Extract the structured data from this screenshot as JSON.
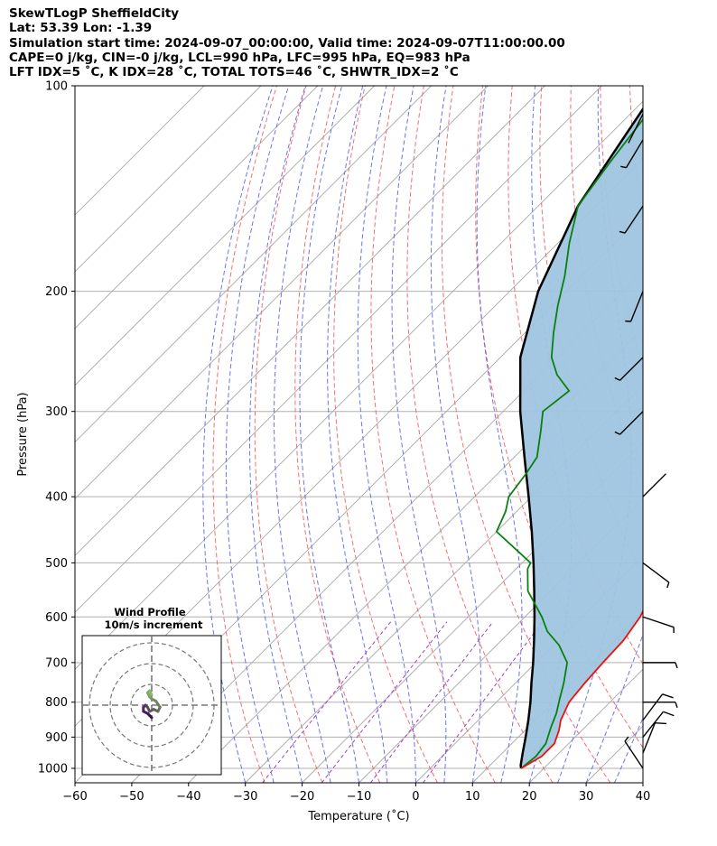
{
  "header": {
    "line1": "SkewTLogP SheffieldCity",
    "line2": "Lat: 53.39   Lon: -1.39",
    "line3": "Simulation start time: 2024-09-07_00:00:00, Valid time: 2024-09-07T11:00:00.00",
    "line4": "CAPE=0 j/kg, CIN=-0 j/kg, LCL=990 hPa, LFC=995 hPa, EQ=983 hPa",
    "line5": "LFT IDX=5 ˚C, K IDX=28 ˚C, TOTAL TOTS=46 ˚C, SHWTR_IDX=2 ˚C"
  },
  "chart_data": {
    "type": "line",
    "subtype": "skew-T log-P diagram",
    "xlabel": "Temperature (˚C)",
    "ylabel": "Pressure (hPa)",
    "xlim": [
      -60,
      40
    ],
    "ylim": [
      1050,
      100
    ],
    "y_scale": "log",
    "x_ticks": [
      "−60",
      "−50",
      "−40",
      "−30",
      "−20",
      "−10",
      "0",
      "10",
      "20",
      "30",
      "40"
    ],
    "y_ticks": [
      "100",
      "200",
      "300",
      "400",
      "500",
      "600",
      "700",
      "800",
      "900",
      "1000"
    ],
    "grid": true,
    "colors": {
      "temperature": "#e8120f",
      "dewpoint": "#0a8010",
      "parcel": "#000000",
      "cape_fill": "#9fc5df",
      "dry_adiabats": "#f06060",
      "moist_adiabats": "#5a64f0",
      "mixing_ratio": "#a040c0",
      "isotherms": "#aaaaaa"
    },
    "series": [
      {
        "name": "",
        "role": "temperature",
        "points": [
          [
            1000,
            16
          ],
          [
            960,
            17.5
          ],
          [
            920,
            17.5
          ],
          [
            880,
            16
          ],
          [
            850,
            14.5
          ],
          [
            800,
            12.8
          ],
          [
            750,
            12.2
          ],
          [
            700,
            11.8
          ],
          [
            650,
            11.5
          ],
          [
            600,
            10.3
          ],
          [
            550,
            8
          ],
          [
            500,
            5.5
          ],
          [
            450,
            2.5
          ],
          [
            400,
            -2.5
          ],
          [
            350,
            -8.5
          ],
          [
            300,
            -16.5
          ],
          [
            270,
            -21
          ],
          [
            250,
            -25
          ],
          [
            230,
            -29
          ],
          [
            210,
            -33
          ],
          [
            190,
            -37
          ],
          [
            170,
            -41.5
          ],
          [
            150,
            -48
          ],
          [
            130,
            -52
          ],
          [
            120,
            -54.5
          ],
          [
            110,
            -56.5
          ],
          [
            100,
            -59
          ]
        ]
      },
      {
        "name": "",
        "role": "dewpoint",
        "points": [
          [
            1000,
            16
          ],
          [
            960,
            16.5
          ],
          [
            920,
            16
          ],
          [
            870,
            14
          ],
          [
            830,
            12.5
          ],
          [
            790,
            10.5
          ],
          [
            750,
            8.5
          ],
          [
            700,
            5.5
          ],
          [
            660,
            1
          ],
          [
            630,
            -3.5
          ],
          [
            600,
            -7
          ],
          [
            550,
            -14
          ],
          [
            510,
            -18
          ],
          [
            500,
            -18.5
          ],
          [
            450,
            -30
          ],
          [
            420,
            -32
          ],
          [
            400,
            -34
          ],
          [
            370,
            -35
          ],
          [
            350,
            -36
          ],
          [
            320,
            -40
          ],
          [
            300,
            -43
          ],
          [
            280,
            -42
          ],
          [
            265,
            -47
          ],
          [
            250,
            -51
          ],
          [
            230,
            -55
          ],
          [
            210,
            -59
          ],
          [
            190,
            -63
          ],
          [
            170,
            -68
          ],
          [
            150,
            -73
          ],
          [
            130,
            -75
          ],
          [
            120,
            -76
          ],
          [
            110,
            -77
          ],
          [
            100,
            -79
          ]
        ]
      },
      {
        "name": "",
        "role": "parcel",
        "points": [
          [
            1000,
            16
          ],
          [
            990,
            15.4
          ],
          [
            950,
            13.6
          ],
          [
            900,
            11.3
          ],
          [
            850,
            8.8
          ],
          [
            800,
            6
          ],
          [
            750,
            2.8
          ],
          [
            700,
            -0.5
          ],
          [
            650,
            -4.2
          ],
          [
            600,
            -8.3
          ],
          [
            550,
            -12.9
          ],
          [
            500,
            -18
          ],
          [
            450,
            -23.8
          ],
          [
            400,
            -30.5
          ],
          [
            350,
            -38.2
          ],
          [
            300,
            -47
          ],
          [
            250,
            -56.5
          ],
          [
            200,
            -65
          ],
          [
            150,
            -73
          ],
          [
            100,
            -80
          ]
        ]
      }
    ],
    "wind_barbs": [
      {
        "p": 1000,
        "u": 4,
        "v": -6
      },
      {
        "p": 950,
        "u": -4,
        "v": -10
      },
      {
        "p": 900,
        "u": -8,
        "v": -10
      },
      {
        "p": 850,
        "u": -6,
        "v": -8
      },
      {
        "p": 800,
        "u": -8,
        "v": 0
      },
      {
        "p": 700,
        "u": -6,
        "v": 0
      },
      {
        "p": 600,
        "u": -6,
        "v": 2
      },
      {
        "p": 500,
        "u": -4,
        "v": 3
      },
      {
        "p": 400,
        "u": -2,
        "v": -2
      },
      {
        "p": 300,
        "u": 6,
        "v": 6
      },
      {
        "p": 250,
        "u": 4,
        "v": 4
      },
      {
        "p": 200,
        "u": 2,
        "v": 5
      },
      {
        "p": 150,
        "u": 4,
        "v": 6
      },
      {
        "p": 120,
        "u": 3,
        "v": 5
      },
      {
        "p": 110,
        "u": 2,
        "v": 4
      }
    ],
    "hodograph": {
      "title": "Wind Profile",
      "subtitle": "10m/s increment",
      "ring_increment": 10,
      "points": [
        [
          0,
          -6
        ],
        [
          -2,
          -4
        ],
        [
          -4,
          -3
        ],
        [
          -4,
          -1
        ],
        [
          -3,
          0
        ],
        [
          -2,
          -1
        ],
        [
          -1,
          -3
        ],
        [
          1,
          -2
        ],
        [
          3,
          -3
        ],
        [
          4,
          -1
        ],
        [
          2,
          2
        ],
        [
          0,
          3
        ],
        [
          -1,
          4
        ],
        [
          -2,
          6
        ],
        [
          -1,
          7
        ],
        [
          0,
          5
        ]
      ]
    }
  }
}
